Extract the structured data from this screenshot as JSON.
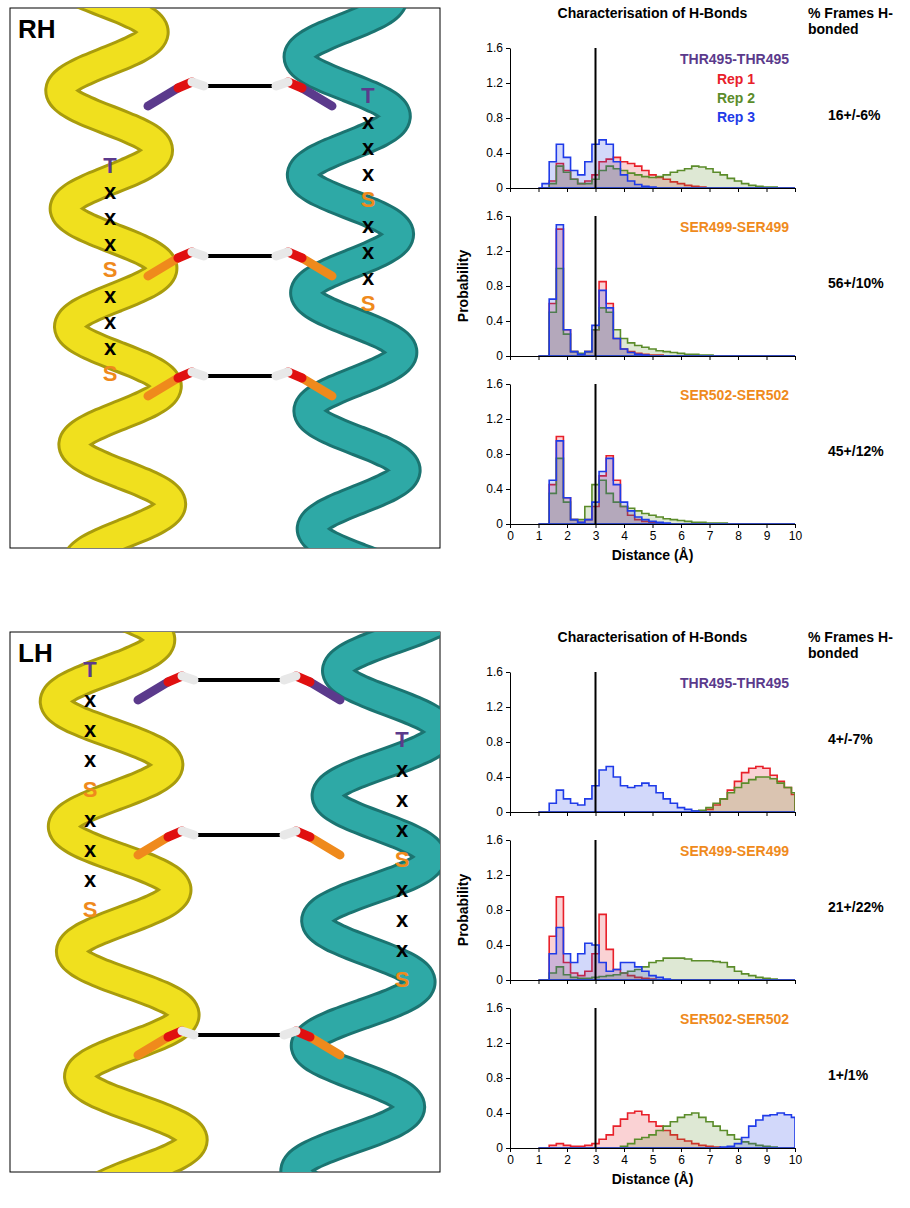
{
  "panels": [
    {
      "label": "RH",
      "heading": "Characterisation of H-Bonds",
      "column_heading": "% Frames H-bonded",
      "helix_letters": [
        [
          "T",
          "x",
          "x",
          "x",
          "S",
          "x",
          "x",
          "x",
          "S"
        ],
        [
          "T",
          "x",
          "x",
          "x",
          "S",
          "x",
          "x",
          "x",
          "S"
        ]
      ]
    },
    {
      "label": "LH",
      "heading": "Characterisation of H-Bonds",
      "column_heading": "% Frames H-bonded",
      "helix_letters": [
        [
          "T",
          "x",
          "x",
          "x",
          "S",
          "x",
          "x",
          "x",
          "S"
        ],
        [
          "T",
          "x",
          "x",
          "x",
          "S",
          "x",
          "x",
          "x",
          "S"
        ]
      ]
    }
  ],
  "chart_data": [
    {
      "type": "area",
      "title": "THR495-THR495",
      "annotation": "16+/-6%",
      "cutoff": 3,
      "legend": "top-right",
      "tick_labels": "y",
      "xlim": [
        0,
        10
      ],
      "xticks": [
        0,
        1,
        2,
        3,
        4,
        5,
        6,
        7,
        8,
        9,
        10
      ],
      "ylim": [
        0,
        1.6
      ],
      "yticks": [
        0,
        0.4,
        0.8,
        1.2,
        1.6
      ],
      "x": [
        1,
        1.25,
        1.5,
        1.75,
        2,
        2.25,
        2.5,
        2.75,
        3,
        3.25,
        3.5,
        3.75,
        4,
        4.25,
        4.5,
        4.75,
        5,
        5.25,
        5.5,
        5.75,
        6,
        6.25,
        6.5,
        6.75,
        7,
        7.25,
        7.5,
        7.75,
        8,
        8.25,
        8.5,
        8.75,
        9,
        9.25,
        9.5,
        9.75,
        10
      ],
      "series": [
        {
          "name": "Rep 1",
          "color": "#e8202a",
          "values": [
            0,
            0,
            0.08,
            0.28,
            0.2,
            0.1,
            0.05,
            0.08,
            0.15,
            0.3,
            0.33,
            0.35,
            0.3,
            0.28,
            0.25,
            0.2,
            0.15,
            0.12,
            0.1,
            0.07,
            0.05,
            0.03,
            0.02,
            0.01,
            0,
            0,
            0,
            0,
            0,
            0,
            0,
            0,
            0,
            0,
            0,
            0,
            0
          ]
        },
        {
          "name": "Rep 2",
          "color": "#5b8c2a",
          "values": [
            0,
            0,
            0.05,
            0.25,
            0.18,
            0.1,
            0.05,
            0.05,
            0.1,
            0.2,
            0.25,
            0.22,
            0.2,
            0.17,
            0.15,
            0.13,
            0.12,
            0.13,
            0.15,
            0.18,
            0.2,
            0.22,
            0.25,
            0.24,
            0.22,
            0.18,
            0.15,
            0.11,
            0.08,
            0.05,
            0.03,
            0.02,
            0.01,
            0.01,
            0,
            0,
            0
          ]
        },
        {
          "name": "Rep 3",
          "color": "#1f3be8",
          "values": [
            0,
            0.05,
            0.3,
            0.5,
            0.35,
            0.2,
            0.15,
            0.3,
            0.5,
            0.55,
            0.5,
            0.3,
            0.15,
            0.08,
            0.04,
            0.02,
            0.01,
            0,
            0,
            0,
            0,
            0,
            0,
            0,
            0,
            0,
            0,
            0,
            0,
            0,
            0,
            0,
            0,
            0,
            0,
            0,
            0
          ]
        }
      ]
    },
    {
      "type": "area",
      "title": "SER499-SER499",
      "annotation": "56+/10%",
      "cutoff": 3,
      "tick_labels": "y",
      "ylabel": "Probability",
      "xlim": [
        0,
        10
      ],
      "xticks": [
        0,
        1,
        2,
        3,
        4,
        5,
        6,
        7,
        8,
        9,
        10
      ],
      "ylim": [
        0,
        1.6
      ],
      "yticks": [
        0,
        0.4,
        0.8,
        1.2,
        1.6
      ],
      "x": [
        1,
        1.25,
        1.5,
        1.75,
        2,
        2.25,
        2.5,
        2.75,
        3,
        3.25,
        3.5,
        3.75,
        4,
        4.25,
        4.5,
        4.75,
        5,
        5.25,
        5.5,
        5.75,
        6,
        6.25,
        6.5,
        6.75,
        7,
        7.25,
        7.5,
        7.75,
        8,
        8.25,
        8.5,
        8.75,
        9,
        9.25,
        9.5,
        9.75,
        10
      ],
      "series": [
        {
          "color": "#e8202a",
          "values": [
            0,
            0,
            0.6,
            1.45,
            0.3,
            0.05,
            0.02,
            0.05,
            0.3,
            0.85,
            0.6,
            0.2,
            0.08,
            0.05,
            0.03,
            0.02,
            0.01,
            0.01,
            0,
            0,
            0,
            0,
            0,
            0,
            0,
            0,
            0,
            0,
            0,
            0,
            0,
            0,
            0,
            0,
            0,
            0,
            0
          ]
        },
        {
          "color": "#5b8c2a",
          "values": [
            0,
            0,
            0.5,
            1.0,
            0.25,
            0.05,
            0.03,
            0.05,
            0.3,
            0.55,
            0.5,
            0.3,
            0.2,
            0.15,
            0.12,
            0.1,
            0.08,
            0.06,
            0.05,
            0.04,
            0.03,
            0.02,
            0.02,
            0.01,
            0.01,
            0,
            0,
            0,
            0,
            0,
            0,
            0,
            0,
            0,
            0,
            0,
            0
          ]
        },
        {
          "color": "#1f3be8",
          "values": [
            0,
            0,
            0.65,
            1.5,
            0.3,
            0.05,
            0.02,
            0.05,
            0.35,
            0.75,
            0.55,
            0.2,
            0.08,
            0.04,
            0.02,
            0.01,
            0,
            0,
            0,
            0,
            0,
            0,
            0,
            0,
            0,
            0,
            0,
            0,
            0,
            0,
            0,
            0,
            0,
            0,
            0,
            0,
            0
          ]
        }
      ]
    },
    {
      "type": "area",
      "title": "SER502-SER502",
      "annotation": "45+/12%",
      "cutoff": 3,
      "xlabel": "Distance (Å)",
      "xlim": [
        0,
        10
      ],
      "xticks": [
        0,
        1,
        2,
        3,
        4,
        5,
        6,
        7,
        8,
        9,
        10
      ],
      "ylim": [
        0,
        1.6
      ],
      "yticks": [
        0,
        0.4,
        0.8,
        1.2,
        1.6
      ],
      "x": [
        1,
        1.25,
        1.5,
        1.75,
        2,
        2.25,
        2.5,
        2.75,
        3,
        3.25,
        3.5,
        3.75,
        4,
        4.25,
        4.5,
        4.75,
        5,
        5.25,
        5.5,
        5.75,
        6,
        6.25,
        6.5,
        6.75,
        7,
        7.25,
        7.5,
        7.75,
        8,
        8.25,
        8.5,
        8.75,
        9,
        9.25,
        9.5,
        9.75,
        10
      ],
      "series": [
        {
          "color": "#e8202a",
          "values": [
            0,
            0,
            0.45,
            1.0,
            0.3,
            0.05,
            0.02,
            0.05,
            0.2,
            0.55,
            0.78,
            0.5,
            0.2,
            0.1,
            0.05,
            0.03,
            0.02,
            0.01,
            0,
            0,
            0,
            0,
            0,
            0,
            0,
            0,
            0,
            0,
            0,
            0,
            0,
            0,
            0,
            0,
            0,
            0,
            0
          ]
        },
        {
          "color": "#5b8c2a",
          "values": [
            0,
            0,
            0.35,
            0.75,
            0.25,
            0.05,
            0.05,
            0.2,
            0.45,
            0.5,
            0.35,
            0.25,
            0.2,
            0.18,
            0.15,
            0.12,
            0.1,
            0.08,
            0.06,
            0.05,
            0.04,
            0.03,
            0.02,
            0.02,
            0.01,
            0.01,
            0.01,
            0,
            0,
            0,
            0,
            0,
            0,
            0,
            0,
            0,
            0
          ]
        },
        {
          "color": "#1f3be8",
          "values": [
            0,
            0,
            0.5,
            0.95,
            0.3,
            0.05,
            0.02,
            0.05,
            0.25,
            0.6,
            0.75,
            0.45,
            0.25,
            0.15,
            0.08,
            0.05,
            0.03,
            0.02,
            0.01,
            0,
            0,
            0,
            0,
            0,
            0,
            0,
            0,
            0,
            0,
            0,
            0,
            0,
            0,
            0,
            0,
            0,
            0
          ]
        }
      ]
    },
    {
      "type": "area",
      "title": "THR495-THR495",
      "annotation": "4+/-7%",
      "cutoff": 3,
      "tick_labels": "y",
      "xlim": [
        0,
        10
      ],
      "xticks": [
        0,
        1,
        2,
        3,
        4,
        5,
        6,
        7,
        8,
        9,
        10
      ],
      "ylim": [
        0,
        1.6
      ],
      "yticks": [
        0,
        0.4,
        0.8,
        1.2,
        1.6
      ],
      "x": [
        1,
        1.25,
        1.5,
        1.75,
        2,
        2.25,
        2.5,
        2.75,
        3,
        3.25,
        3.5,
        3.75,
        4,
        4.25,
        4.5,
        4.75,
        5,
        5.25,
        5.5,
        5.75,
        6,
        6.25,
        6.5,
        6.75,
        7,
        7.25,
        7.5,
        7.75,
        8,
        8.25,
        8.5,
        8.75,
        9,
        9.25,
        9.5,
        9.75,
        10
      ],
      "series": [
        {
          "color": "#e8202a",
          "values": [
            0,
            0,
            0,
            0,
            0,
            0,
            0,
            0,
            0,
            0,
            0,
            0,
            0,
            0,
            0,
            0,
            0,
            0,
            0,
            0,
            0,
            0,
            0,
            0.01,
            0.03,
            0.08,
            0.15,
            0.25,
            0.35,
            0.45,
            0.5,
            0.52,
            0.5,
            0.42,
            0.35,
            0.28,
            0.2
          ]
        },
        {
          "color": "#5b8c2a",
          "values": [
            0,
            0,
            0,
            0,
            0,
            0,
            0,
            0,
            0,
            0,
            0,
            0,
            0,
            0,
            0,
            0,
            0,
            0,
            0,
            0,
            0,
            0,
            0.01,
            0.02,
            0.05,
            0.1,
            0.15,
            0.22,
            0.28,
            0.33,
            0.37,
            0.4,
            0.4,
            0.38,
            0.33,
            0.28,
            0.22
          ]
        },
        {
          "color": "#1f3be8",
          "values": [
            0,
            0,
            0.1,
            0.25,
            0.15,
            0.1,
            0.08,
            0.15,
            0.3,
            0.48,
            0.52,
            0.4,
            0.3,
            0.28,
            0.3,
            0.33,
            0.3,
            0.22,
            0.15,
            0.1,
            0.05,
            0.03,
            0.01,
            0,
            0,
            0,
            0,
            0,
            0,
            0,
            0,
            0,
            0,
            0,
            0,
            0,
            0
          ]
        }
      ]
    },
    {
      "type": "area",
      "title": "SER499-SER499",
      "annotation": "21+/22%",
      "cutoff": 3,
      "tick_labels": "y",
      "ylabel": "Probability",
      "xlim": [
        0,
        10
      ],
      "xticks": [
        0,
        1,
        2,
        3,
        4,
        5,
        6,
        7,
        8,
        9,
        10
      ],
      "ylim": [
        0,
        1.6
      ],
      "yticks": [
        0,
        0.4,
        0.8,
        1.2,
        1.6
      ],
      "x": [
        1,
        1.25,
        1.5,
        1.75,
        2,
        2.25,
        2.5,
        2.75,
        3,
        3.25,
        3.5,
        3.75,
        4,
        4.25,
        4.5,
        4.75,
        5,
        5.25,
        5.5,
        5.75,
        6,
        6.25,
        6.5,
        6.75,
        7,
        7.25,
        7.5,
        7.75,
        8,
        8.25,
        8.5,
        8.75,
        9,
        9.25,
        9.5,
        9.75,
        10
      ],
      "series": [
        {
          "color": "#e8202a",
          "values": [
            0,
            0,
            0.5,
            0.95,
            0.2,
            0.08,
            0.05,
            0.1,
            0.3,
            0.75,
            0.35,
            0.12,
            0.08,
            0.05,
            0.03,
            0.02,
            0.01,
            0,
            0,
            0,
            0,
            0,
            0,
            0,
            0,
            0,
            0,
            0,
            0,
            0,
            0,
            0,
            0,
            0,
            0,
            0,
            0
          ]
        },
        {
          "color": "#5b8c2a",
          "values": [
            0,
            0,
            0.08,
            0.15,
            0.06,
            0.03,
            0.02,
            0.02,
            0.03,
            0.04,
            0.05,
            0.06,
            0.08,
            0.1,
            0.12,
            0.15,
            0.2,
            0.22,
            0.25,
            0.25,
            0.25,
            0.24,
            0.22,
            0.22,
            0.22,
            0.21,
            0.2,
            0.15,
            0.1,
            0.07,
            0.05,
            0.03,
            0.02,
            0.01,
            0,
            0,
            0
          ]
        },
        {
          "color": "#1f3be8",
          "values": [
            0,
            0,
            0.3,
            0.6,
            0.3,
            0.2,
            0.3,
            0.42,
            0.4,
            0.2,
            0.1,
            0.12,
            0.2,
            0.2,
            0.15,
            0.1,
            0.05,
            0.03,
            0.01,
            0,
            0,
            0,
            0,
            0,
            0,
            0,
            0,
            0,
            0,
            0,
            0,
            0,
            0,
            0,
            0,
            0,
            0
          ]
        }
      ]
    },
    {
      "type": "area",
      "title": "SER502-SER502",
      "annotation": "1+/1%",
      "cutoff": 3,
      "xlabel": "Distance (Å)",
      "xlim": [
        0,
        10
      ],
      "xticks": [
        0,
        1,
        2,
        3,
        4,
        5,
        6,
        7,
        8,
        9,
        10
      ],
      "ylim": [
        0,
        1.6
      ],
      "yticks": [
        0,
        0.4,
        0.8,
        1.2,
        1.6
      ],
      "x": [
        1,
        1.25,
        1.5,
        1.75,
        2,
        2.25,
        2.5,
        2.75,
        3,
        3.25,
        3.5,
        3.75,
        4,
        4.25,
        4.5,
        4.75,
        5,
        5.25,
        5.5,
        5.75,
        6,
        6.25,
        6.5,
        6.75,
        7,
        7.25,
        7.5,
        7.75,
        8,
        8.25,
        8.5,
        8.75,
        9,
        9.25,
        9.5,
        9.75,
        10
      ],
      "series": [
        {
          "color": "#e8202a",
          "values": [
            0,
            0,
            0.03,
            0.05,
            0.03,
            0.02,
            0.02,
            0.03,
            0.05,
            0.1,
            0.15,
            0.25,
            0.33,
            0.4,
            0.42,
            0.38,
            0.3,
            0.25,
            0.2,
            0.15,
            0.1,
            0.08,
            0.05,
            0.03,
            0.02,
            0.01,
            0,
            0,
            0,
            0,
            0,
            0,
            0,
            0,
            0,
            0,
            0
          ]
        },
        {
          "color": "#5b8c2a",
          "values": [
            0,
            0,
            0,
            0,
            0,
            0,
            0,
            0,
            0,
            0,
            0,
            0,
            0.02,
            0.05,
            0.1,
            0.12,
            0.15,
            0.2,
            0.25,
            0.3,
            0.35,
            0.38,
            0.4,
            0.35,
            0.3,
            0.25,
            0.2,
            0.15,
            0.1,
            0.07,
            0.05,
            0.03,
            0.02,
            0.01,
            0,
            0,
            0
          ]
        },
        {
          "color": "#1f3be8",
          "values": [
            0,
            0,
            0,
            0,
            0,
            0,
            0,
            0,
            0,
            0,
            0,
            0,
            0,
            0,
            0,
            0,
            0,
            0,
            0,
            0,
            0,
            0,
            0,
            0,
            0,
            0,
            0.01,
            0.02,
            0.05,
            0.12,
            0.25,
            0.32,
            0.37,
            0.38,
            0.4,
            0.38,
            0.35
          ]
        }
      ]
    }
  ]
}
